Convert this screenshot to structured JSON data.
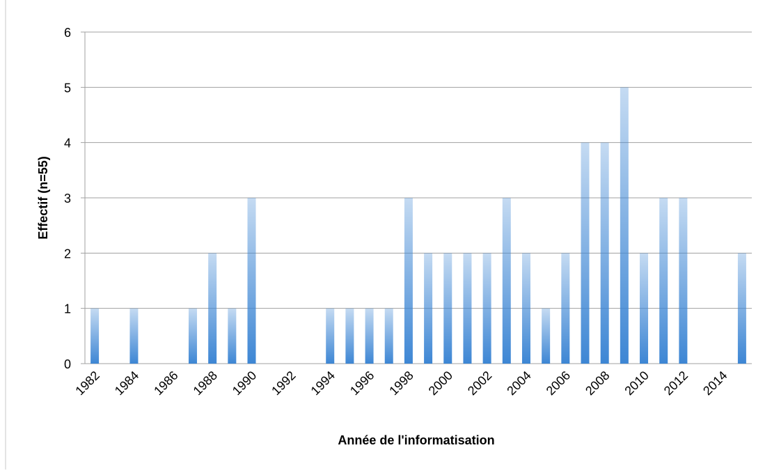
{
  "chart_data": {
    "type": "bar",
    "xlabel": "Année de l'informatisation",
    "ylabel": "Effectif (n=55)",
    "categories": [
      "1982",
      null,
      "1984",
      null,
      "1986",
      null,
      "1988",
      null,
      "1990",
      null,
      "1992",
      null,
      "1994",
      null,
      "1996",
      null,
      "1998",
      null,
      "2000",
      null,
      "2002",
      null,
      "2004",
      null,
      "2006",
      null,
      "2008",
      null,
      "2010",
      null,
      "2012",
      null,
      "2014",
      null
    ],
    "values": [
      1,
      0,
      1,
      0,
      0,
      1,
      2,
      1,
      3,
      0,
      0,
      0,
      1,
      1,
      1,
      1,
      3,
      2,
      2,
      2,
      2,
      3,
      2,
      1,
      2,
      4,
      4,
      5,
      2,
      3,
      3,
      0,
      0,
      2
    ],
    "color": "#3d86d4",
    "ylim": [
      0,
      6
    ],
    "yticks": [
      0,
      1,
      2,
      3,
      4,
      5,
      6
    ],
    "grid": true
  }
}
